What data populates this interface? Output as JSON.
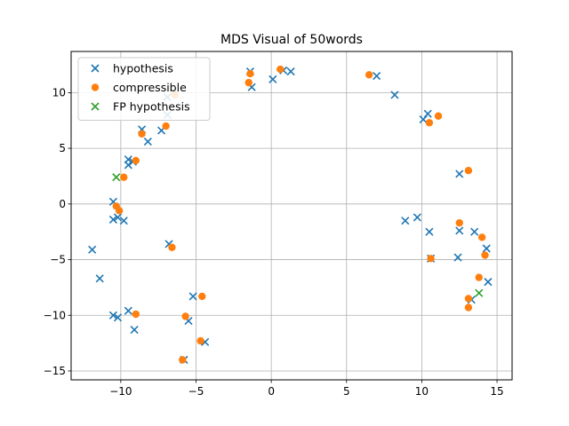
{
  "chart_data": {
    "type": "scatter",
    "title": "MDS Visual of 50words",
    "xlabel": "",
    "ylabel": "",
    "xlim": [
      -13.3,
      16.0
    ],
    "ylim": [
      -15.8,
      13.7
    ],
    "xticks": [
      -10,
      -5,
      0,
      5,
      10,
      15
    ],
    "yticks": [
      -15,
      -10,
      -5,
      0,
      5,
      10
    ],
    "grid": true,
    "legend_position": "top-left",
    "series": [
      {
        "name": "hypothesis",
        "marker": "x",
        "color": "#1f77b4",
        "points": [
          [
            -11.9,
            -4.1
          ],
          [
            -11.4,
            -6.7
          ],
          [
            -10.5,
            0.2
          ],
          [
            -10.5,
            -1.4
          ],
          [
            -10.2,
            -1.2
          ],
          [
            -9.8,
            -1.5
          ],
          [
            -10.5,
            -10.0
          ],
          [
            -10.2,
            -10.2
          ],
          [
            -9.5,
            -9.6
          ],
          [
            -9.1,
            -11.3
          ],
          [
            -9.5,
            4.0
          ],
          [
            -9.5,
            3.5
          ],
          [
            -9.2,
            3.8
          ],
          [
            -8.6,
            6.7
          ],
          [
            -8.2,
            5.6
          ],
          [
            -7.3,
            6.6
          ],
          [
            -6.9,
            9.6
          ],
          [
            -6.9,
            8.0
          ],
          [
            -6.8,
            -3.6
          ],
          [
            -5.2,
            -8.3
          ],
          [
            -5.5,
            -10.5
          ],
          [
            -4.4,
            -12.4
          ],
          [
            -5.8,
            -14.0
          ],
          [
            -1.4,
            11.9
          ],
          [
            -1.3,
            10.5
          ],
          [
            0.1,
            11.2
          ],
          [
            0.8,
            12.0
          ],
          [
            1.3,
            11.9
          ],
          [
            7.0,
            11.5
          ],
          [
            8.2,
            9.8
          ],
          [
            10.1,
            7.6
          ],
          [
            10.4,
            8.1
          ],
          [
            8.9,
            -1.5
          ],
          [
            9.7,
            -1.2
          ],
          [
            10.5,
            -2.5
          ],
          [
            10.6,
            -4.9
          ],
          [
            12.5,
            2.7
          ],
          [
            12.5,
            -2.4
          ],
          [
            12.4,
            -4.8
          ],
          [
            13.5,
            -2.5
          ],
          [
            14.3,
            -4.0
          ],
          [
            14.4,
            -7.0
          ],
          [
            13.3,
            -8.6
          ]
        ]
      },
      {
        "name": "compressible",
        "marker": "o",
        "color": "#ff7f0e",
        "points": [
          [
            -10.3,
            -0.2
          ],
          [
            -10.1,
            -0.6
          ],
          [
            -9.8,
            2.4
          ],
          [
            -9.0,
            3.9
          ],
          [
            -8.6,
            6.3
          ],
          [
            -7.0,
            7.0
          ],
          [
            -6.4,
            9.8
          ],
          [
            -6.6,
            -3.9
          ],
          [
            -9.0,
            -9.9
          ],
          [
            -4.6,
            -8.3
          ],
          [
            -5.7,
            -10.1
          ],
          [
            -4.7,
            -12.3
          ],
          [
            -5.9,
            -14.0
          ],
          [
            -1.4,
            11.7
          ],
          [
            -1.5,
            10.9
          ],
          [
            0.6,
            12.1
          ],
          [
            6.5,
            11.6
          ],
          [
            10.5,
            7.3
          ],
          [
            11.1,
            7.9
          ],
          [
            13.1,
            3.0
          ],
          [
            12.5,
            -1.7
          ],
          [
            14.0,
            -3.0
          ],
          [
            14.2,
            -4.6
          ],
          [
            10.6,
            -4.9
          ],
          [
            13.8,
            -6.6
          ],
          [
            13.1,
            -8.5
          ],
          [
            13.1,
            -9.3
          ]
        ]
      },
      {
        "name": "FP hypothesis",
        "marker": "x",
        "color": "#2ca02c",
        "points": [
          [
            -10.3,
            2.4
          ],
          [
            13.8,
            -8.0
          ]
        ]
      }
    ]
  }
}
